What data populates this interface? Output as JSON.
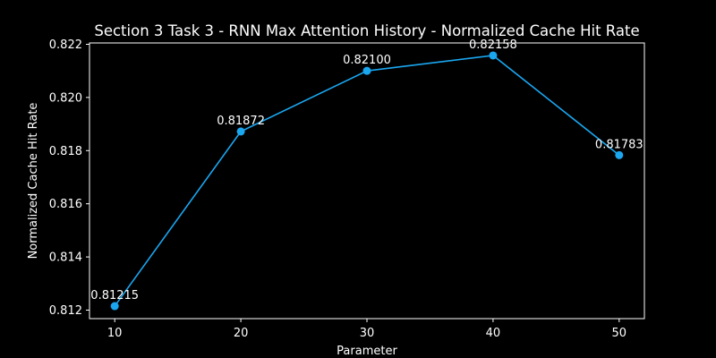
{
  "chart_data": {
    "type": "line",
    "title": "Section 3 Task 3 - RNN Max Attention History - Normalized Cache Hit Rate",
    "xlabel": "Parameter",
    "ylabel": "Normalized Cache Hit Rate",
    "x": [
      10,
      20,
      30,
      40,
      50
    ],
    "series": [
      {
        "values": [
          0.81215,
          0.81872,
          0.821,
          0.82158,
          0.81783
        ],
        "labels": [
          "0.81215",
          "0.81872",
          "0.82100",
          "0.82158",
          "0.81783"
        ],
        "color": "#1aa7f0"
      }
    ],
    "xlim": [
      8,
      52
    ],
    "ylim": [
      0.81168,
      0.82205
    ],
    "xticks": [
      10,
      20,
      30,
      40,
      50
    ],
    "xtick_labels": [
      "10",
      "20",
      "30",
      "40",
      "50"
    ],
    "yticks": [
      0.812,
      0.814,
      0.816,
      0.818,
      0.82,
      0.822
    ],
    "ytick_labels": [
      "0.812",
      "0.814",
      "0.816",
      "0.818",
      "0.820",
      "0.822"
    ],
    "grid": false,
    "legend": "none",
    "background": "#000000",
    "foreground": "#ffffff"
  }
}
